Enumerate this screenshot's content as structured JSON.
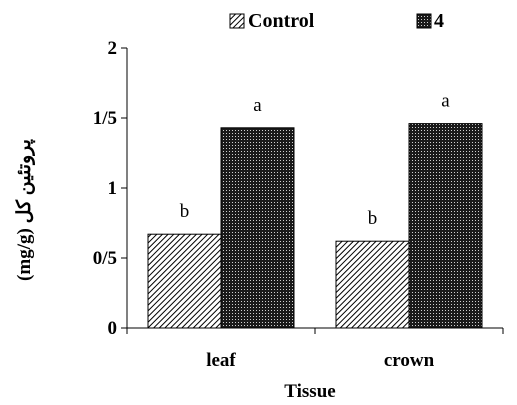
{
  "chart_data": {
    "type": "bar",
    "categories": [
      "leaf",
      "crown"
    ],
    "series": [
      {
        "name": "Control",
        "values": [
          0.67,
          0.62
        ],
        "labels": [
          "b",
          "b"
        ],
        "pattern": "diagonal-hatch"
      },
      {
        "name": "4",
        "values": [
          1.43,
          1.46
        ],
        "labels": [
          "a",
          "a"
        ],
        "pattern": "dark-dotted"
      }
    ],
    "xlabel": "Tissue",
    "ylabel": "(mg/g) پروتئین کل",
    "ylim": [
      0,
      2
    ],
    "yticks": [
      0,
      0.5,
      1,
      1.5,
      2
    ],
    "ytick_labels": [
      "0",
      "0/5",
      "1",
      "1/5",
      "2"
    ],
    "grid": false,
    "legend_position": "top-center"
  }
}
